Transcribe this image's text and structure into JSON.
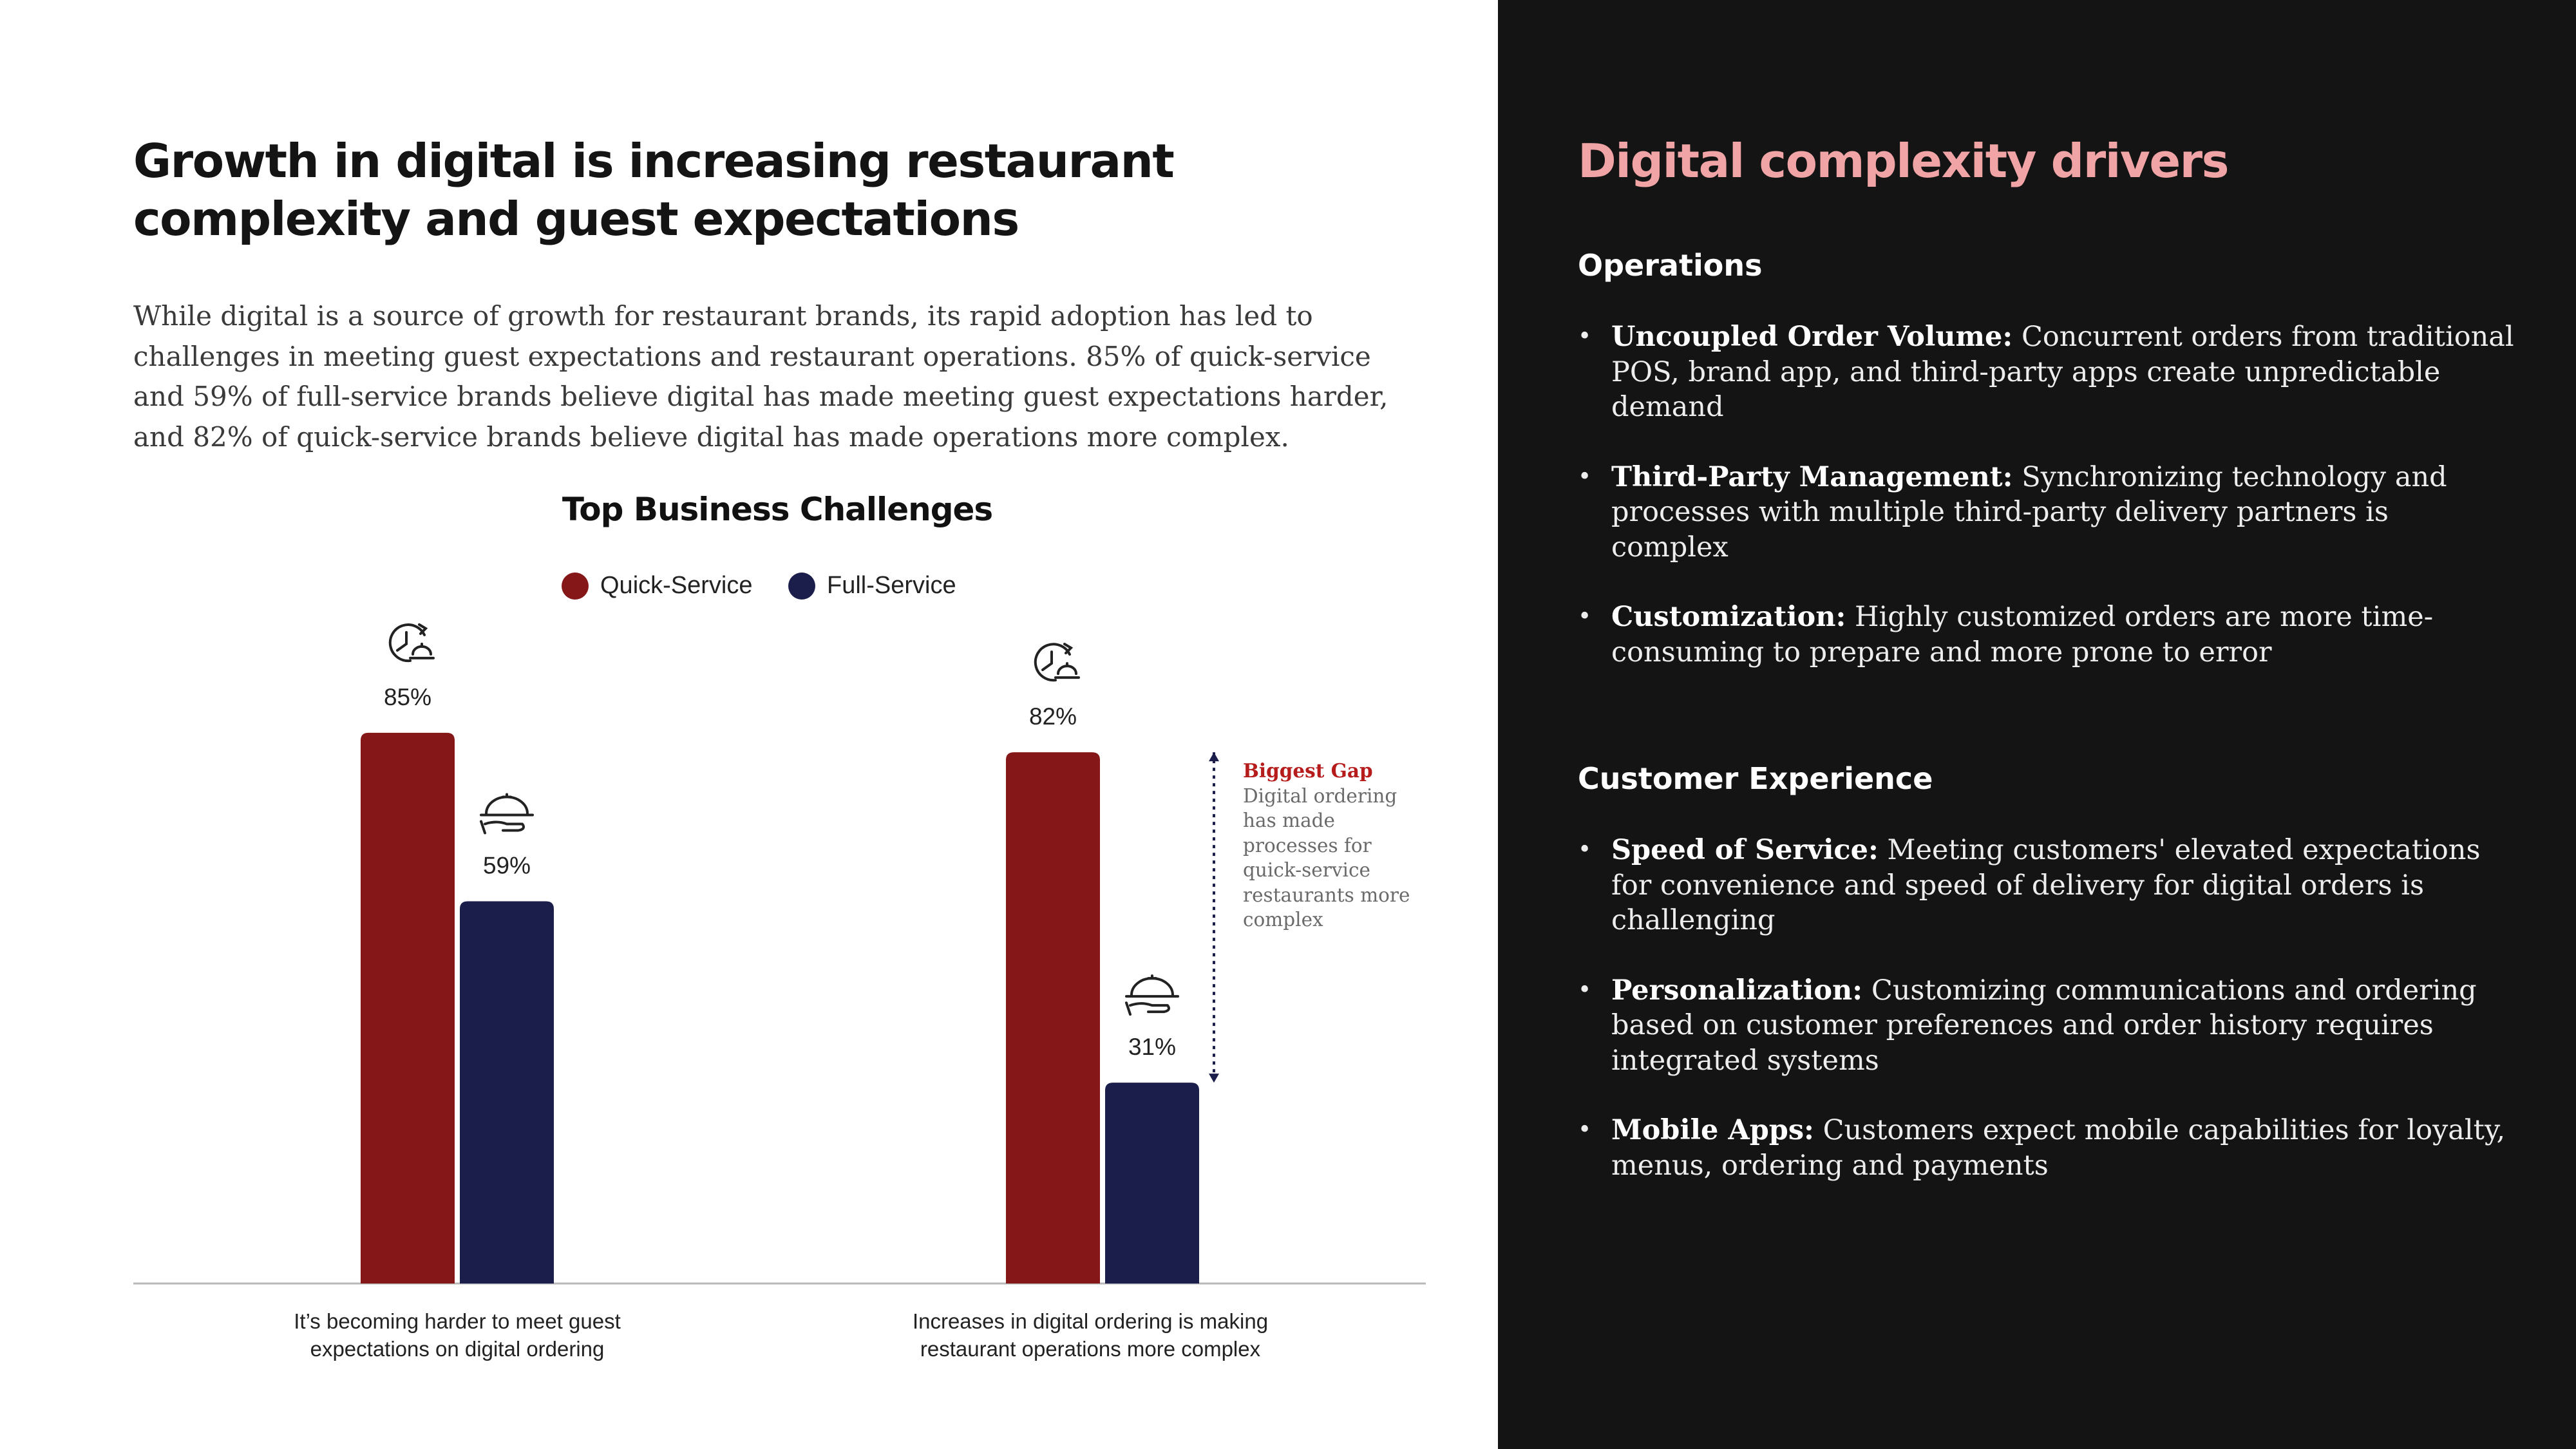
{
  "headline": {
    "lines": [
      "Growth in digital is increasing restaurant",
      "complexity and guest expectations"
    ]
  },
  "intro": {
    "lines": [
      "While digital is a source of growth for restaurant brands, its rapid adoption has led to",
      "challenges in meeting guest expectations and restaurant operations. 85% of quick-service",
      "and 59% of full-service brands believe digital has made meeting guest expectations harder,",
      "and 82% of quick-service brands believe digital has made operations more complex."
    ]
  },
  "chart_data": {
    "type": "bar",
    "title": "Top Business Challenges",
    "categories": [
      "It's becoming harder to meet guest expectations on digital ordering",
      "Increases in digital ordering is making restaurant operations more complex"
    ],
    "category_lines": [
      [
        "It’s becoming harder to meet guest",
        "expectations on digital ordering"
      ],
      [
        "Increases in digital ordering is making",
        "restaurant operations more complex"
      ]
    ],
    "series": [
      {
        "name": "Quick-Service",
        "values": [
          85,
          82
        ],
        "color": "#861719",
        "icon": "clock-food-icon"
      },
      {
        "name": "Full-Service",
        "values": [
          59,
          31
        ],
        "color": "#1b1e4b",
        "icon": "cloche-tray-icon"
      }
    ],
    "value_labels": [
      [
        "85%",
        "82%"
      ],
      [
        "59%",
        "31%"
      ]
    ],
    "ylim": [
      0,
      100
    ],
    "grid": false,
    "legend": "top-center",
    "annotation": {
      "title": "Biggest Gap",
      "lines": [
        "Digital ordering",
        "has made",
        "processes for",
        "quick-service",
        "restaurants more",
        "complex"
      ]
    }
  },
  "right": {
    "title": "Digital complexity drivers",
    "sections": [
      {
        "heading": "Operations",
        "items": [
          {
            "term": "Uncoupled Order Volume:",
            "lines": [
              " Concurrent orders from traditional",
              "POS, brand app, and third-party apps create unpredictable",
              "demand"
            ]
          },
          {
            "term": "Third-Party Management:",
            "lines": [
              " Synchronizing technology and",
              "processes with multiple third-party delivery partners is",
              "complex"
            ]
          },
          {
            "term": "Customization:",
            "lines": [
              " Highly customized orders are more time-",
              "consuming to prepare and more prone to error"
            ]
          }
        ]
      },
      {
        "heading": "Customer Experience",
        "items": [
          {
            "term": "Speed of Service:",
            "lines": [
              " Meeting customers' elevated expectations",
              "for convenience and speed of delivery for digital orders is",
              "challenging"
            ]
          },
          {
            "term": "Personalization:",
            "lines": [
              " Customizing communications and ordering",
              "based on customer preferences and order history requires",
              "integrated systems"
            ]
          },
          {
            "term": "Mobile Apps:",
            "lines": [
              " Customers expect mobile capabilities for loyalty,",
              "menus, ordering and payments"
            ]
          }
        ]
      }
    ]
  }
}
